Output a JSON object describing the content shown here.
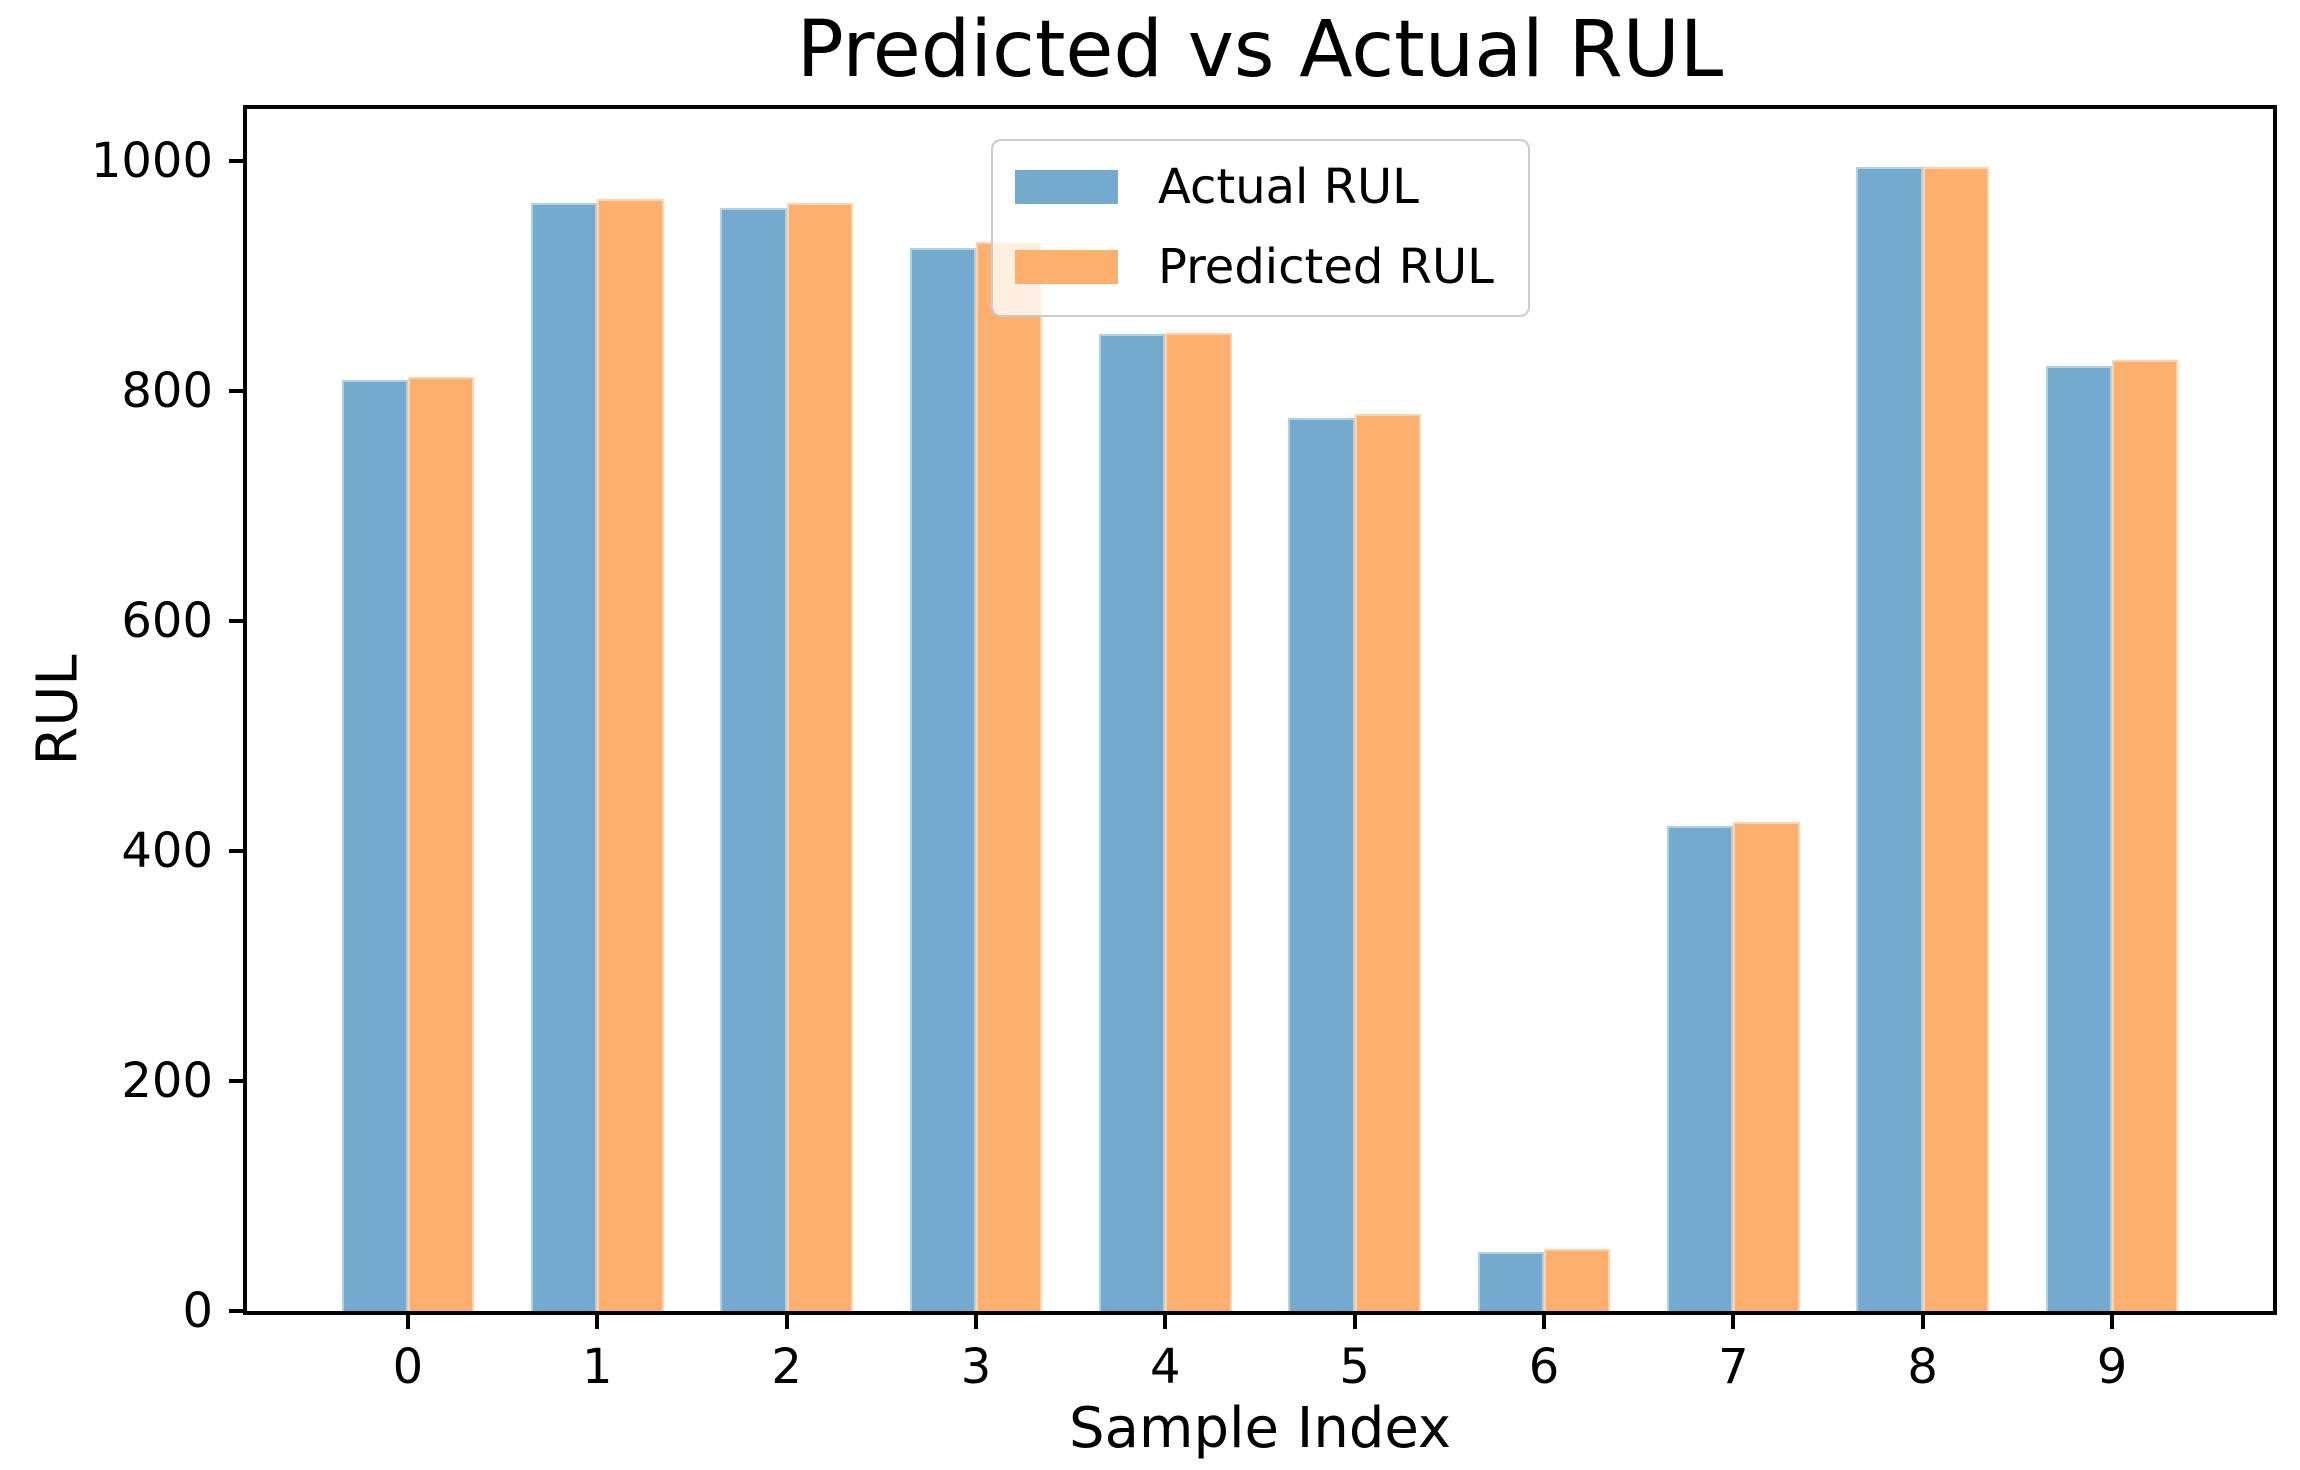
{
  "figure": {
    "title": "Predicted vs Actual RUL",
    "xlabel": "Sample Index",
    "ylabel": "RUL",
    "background_color": "#ffffff",
    "axis_color": "#000000"
  },
  "legend": {
    "position": "upper center",
    "items": [
      {
        "label": "Actual RUL",
        "color": "#74AACD"
      },
      {
        "label": "Predicted RUL",
        "color": "#FDAF6E"
      }
    ]
  },
  "chart_data": {
    "type": "bar",
    "title": "Predicted vs Actual RUL",
    "xlabel": "Sample Index",
    "ylabel": "RUL",
    "categories": [
      "0",
      "1",
      "2",
      "3",
      "4",
      "5",
      "6",
      "7",
      "8",
      "9"
    ],
    "series": [
      {
        "name": "Actual RUL",
        "color": "#74AACD",
        "values": [
          809,
          963,
          959,
          924,
          849,
          776,
          51,
          422,
          995,
          822
        ]
      },
      {
        "name": "Predicted RUL",
        "color": "#FDAF6E",
        "values": [
          812,
          967,
          963,
          929,
          850,
          780,
          54,
          425,
          995,
          827
        ]
      }
    ],
    "ylim": [
      0,
      1045
    ],
    "yticks": [
      0,
      200,
      400,
      600,
      800,
      1000
    ],
    "xlim": [
      -0.85,
      9.85
    ],
    "bar_width_fraction": 0.35,
    "grid": false,
    "legend_position": "upper center"
  }
}
